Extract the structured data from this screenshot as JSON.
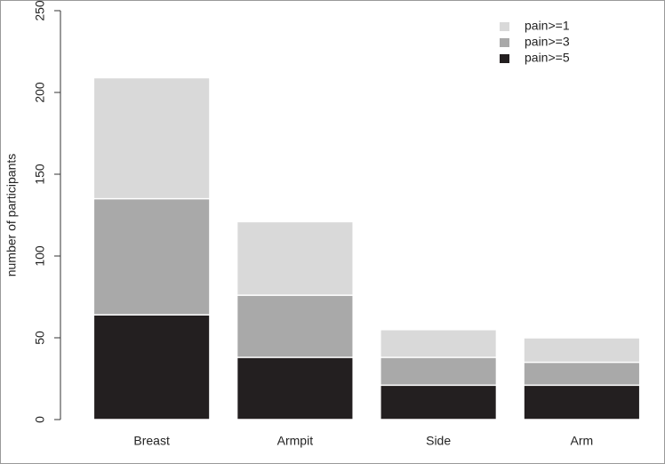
{
  "chart_data": {
    "type": "bar",
    "ylabel": "number of participants",
    "categories": [
      "Breast",
      "Armpit",
      "Side",
      "Arm"
    ],
    "series": [
      {
        "name": "pain>=1",
        "color": "#d9d9d9",
        "values": [
          209,
          121,
          55,
          50
        ]
      },
      {
        "name": "pain>=3",
        "color": "#a9a9a9",
        "values": [
          135,
          76,
          38,
          35
        ]
      },
      {
        "name": "pain>=5",
        "color": "#231f20",
        "values": [
          64,
          38,
          21,
          21
        ]
      }
    ],
    "ylim": [
      0,
      250
    ],
    "yticks": [
      0,
      50,
      100,
      150,
      200,
      250
    ],
    "legend": "upper right"
  }
}
